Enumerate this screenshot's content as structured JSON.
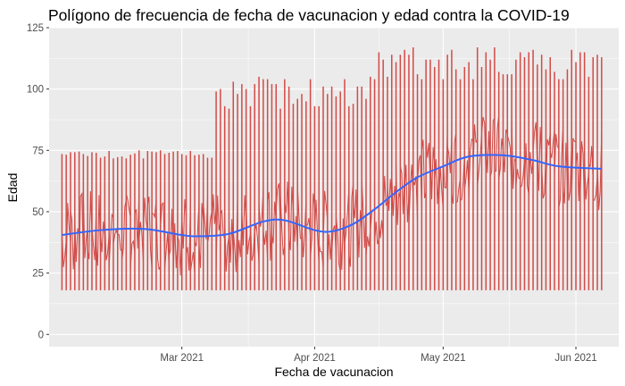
{
  "chart_data": {
    "type": "line",
    "title": "Polígono de frecuencia de fecha de vacunacion y edad contra la COVID-19",
    "xlabel": "Fecha de vacunacion",
    "ylabel": "Edad",
    "xlim": [
      "2021-01-29",
      "2021-06-11"
    ],
    "ylim": [
      -5,
      125
    ],
    "x_ticks": [
      {
        "date": "2021-03-01",
        "label": "Mar 2021"
      },
      {
        "date": "2021-04-01",
        "label": "Apr 2021"
      },
      {
        "date": "2021-05-01",
        "label": "May 2021"
      },
      {
        "date": "2021-06-01",
        "label": "Jun 2021"
      }
    ],
    "y_ticks": [
      0,
      25,
      50,
      75,
      100,
      125
    ],
    "grid": true,
    "series": [
      {
        "kind": "daily-range",
        "color": "#d24b47",
        "date_start": "2021-02-01",
        "date_end": "2021-06-07",
        "minimum_age": 18,
        "maximum_age_by_period": [
          {
            "from": "2021-02-01",
            "to": "2021-02-28",
            "max": 75
          },
          {
            "from": "2021-03-01",
            "to": "2021-03-08",
            "max": 75
          },
          {
            "from": "2021-03-09",
            "to": "2021-04-14",
            "max": 105
          },
          {
            "from": "2021-04-15",
            "to": "2021-06-07",
            "max": 117
          }
        ]
      },
      {
        "kind": "smooth-trend",
        "color": "#3366ff",
        "x": [
          "2021-02-01",
          "2021-02-10",
          "2021-02-20",
          "2021-03-01",
          "2021-03-05",
          "2021-03-12",
          "2021-03-20",
          "2021-03-25",
          "2021-04-01",
          "2021-04-05",
          "2021-04-10",
          "2021-04-15",
          "2021-04-20",
          "2021-04-25",
          "2021-05-01",
          "2021-05-07",
          "2021-05-15",
          "2021-05-22",
          "2021-05-28",
          "2021-06-07"
        ],
        "y": [
          40.5,
          42.5,
          43,
          40.5,
          40,
          41,
          46,
          46.5,
          42.5,
          42,
          45,
          51,
          58,
          64,
          68.5,
          72.5,
          73,
          71,
          68.5,
          67.5
        ]
      }
    ]
  }
}
